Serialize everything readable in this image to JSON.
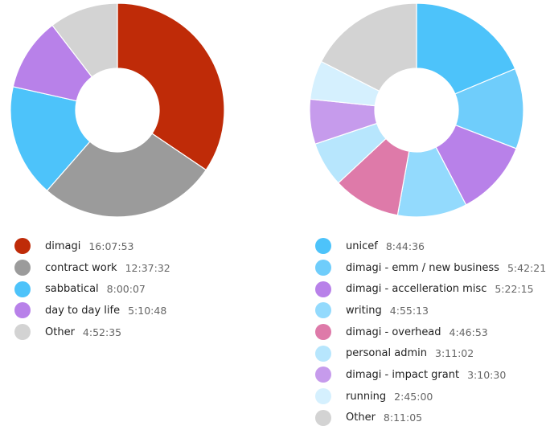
{
  "chart_data": [
    {
      "type": "pie",
      "donut": true,
      "title": "",
      "slices": [
        {
          "label": "dimagi",
          "time": "16:07:53",
          "hours": 16.131,
          "color": "#BF2B08"
        },
        {
          "label": "contract work",
          "time": "12:37:32",
          "hours": 12.626,
          "color": "#9B9B9B"
        },
        {
          "label": "sabbatical",
          "time": "8:00:07",
          "hours": 8.002,
          "color": "#4DC3FA"
        },
        {
          "label": "day to day life",
          "time": "5:10:48",
          "hours": 5.18,
          "color": "#B881E9"
        },
        {
          "label": "Other",
          "time": "4:52:35",
          "hours": 4.876,
          "color": "#D3D3D3"
        }
      ]
    },
    {
      "type": "pie",
      "donut": true,
      "title": "",
      "slices": [
        {
          "label": "unicef",
          "time": "8:44:36",
          "hours": 8.743,
          "color": "#4DC3FA"
        },
        {
          "label": "dimagi - emm / new business",
          "time": "5:42:21",
          "hours": 5.706,
          "color": "#6FCDFB"
        },
        {
          "label": "dimagi - accelleration misc",
          "time": "5:22:15",
          "hours": 5.371,
          "color": "#B881E9"
        },
        {
          "label": "writing",
          "time": "4:55:13",
          "hours": 4.92,
          "color": "#93DAFD"
        },
        {
          "label": "dimagi - overhead",
          "time": "4:46:53",
          "hours": 4.781,
          "color": "#DE7AA9"
        },
        {
          "label": "personal admin",
          "time": "3:11:02",
          "hours": 3.184,
          "color": "#B7E6FD"
        },
        {
          "label": "dimagi - impact grant",
          "time": "3:10:30",
          "hours": 3.175,
          "color": "#C69BEC"
        },
        {
          "label": "running",
          "time": "2:45:00",
          "hours": 2.75,
          "color": "#D5F0FE"
        },
        {
          "label": "Other",
          "time": "8:11:05",
          "hours": 8.185,
          "color": "#D3D3D3"
        }
      ]
    }
  ]
}
